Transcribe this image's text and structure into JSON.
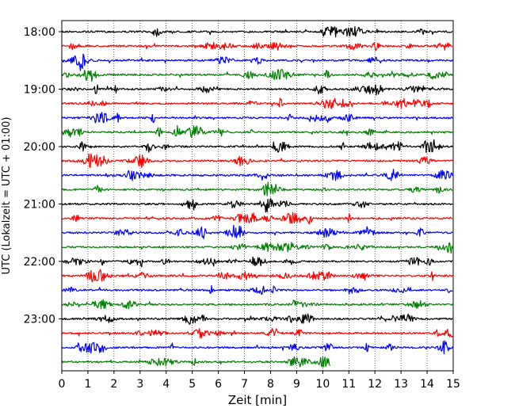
{
  "chart_data": {
    "type": "line",
    "title": "",
    "xlabel": "Zeit  [min]",
    "ylabel": "UTC (Lokalzeit = UTC + 01:00)",
    "xlim": [
      0,
      15
    ],
    "x_ticks": [
      "0",
      "1",
      "2",
      "3",
      "4",
      "5",
      "6",
      "7",
      "8",
      "9",
      "10",
      "11",
      "12",
      "13",
      "14",
      "15"
    ],
    "y_tick_labels": [
      "18:00",
      "19:00",
      "20:00",
      "21:00",
      "22:00",
      "23:00"
    ],
    "grid": "vertical dotted",
    "trace_interval_min": 15,
    "line_colors": [
      "#000000",
      "#ff0000",
      "#0000ff",
      "#008000"
    ],
    "traces": [
      {
        "start": "18:00",
        "duration_min": 15,
        "color": "#000000"
      },
      {
        "start": "18:15",
        "duration_min": 15,
        "color": "#ff0000"
      },
      {
        "start": "18:30",
        "duration_min": 15,
        "color": "#0000ff"
      },
      {
        "start": "18:45",
        "duration_min": 15,
        "color": "#008000"
      },
      {
        "start": "19:00",
        "duration_min": 15,
        "color": "#000000"
      },
      {
        "start": "19:15",
        "duration_min": 15,
        "color": "#ff0000"
      },
      {
        "start": "19:30",
        "duration_min": 15,
        "color": "#0000ff"
      },
      {
        "start": "19:45",
        "duration_min": 15,
        "color": "#008000"
      },
      {
        "start": "20:00",
        "duration_min": 15,
        "color": "#000000"
      },
      {
        "start": "20:15",
        "duration_min": 15,
        "color": "#ff0000"
      },
      {
        "start": "20:30",
        "duration_min": 15,
        "color": "#0000ff"
      },
      {
        "start": "20:45",
        "duration_min": 15,
        "color": "#008000"
      },
      {
        "start": "21:00",
        "duration_min": 15,
        "color": "#000000"
      },
      {
        "start": "21:15",
        "duration_min": 15,
        "color": "#ff0000"
      },
      {
        "start": "21:30",
        "duration_min": 15,
        "color": "#0000ff"
      },
      {
        "start": "21:45",
        "duration_min": 15,
        "color": "#008000"
      },
      {
        "start": "22:00",
        "duration_min": 15,
        "color": "#000000"
      },
      {
        "start": "22:15",
        "duration_min": 15,
        "color": "#ff0000"
      },
      {
        "start": "22:30",
        "duration_min": 15,
        "color": "#0000ff"
      },
      {
        "start": "22:45",
        "duration_min": 15,
        "color": "#008000"
      },
      {
        "start": "23:00",
        "duration_min": 15,
        "color": "#000000"
      },
      {
        "start": "23:15",
        "duration_min": 15,
        "color": "#ff0000"
      },
      {
        "start": "23:30",
        "duration_min": 15,
        "color": "#0000ff"
      },
      {
        "start": "23:45",
        "duration_min": 10.3,
        "color": "#008000"
      }
    ]
  }
}
